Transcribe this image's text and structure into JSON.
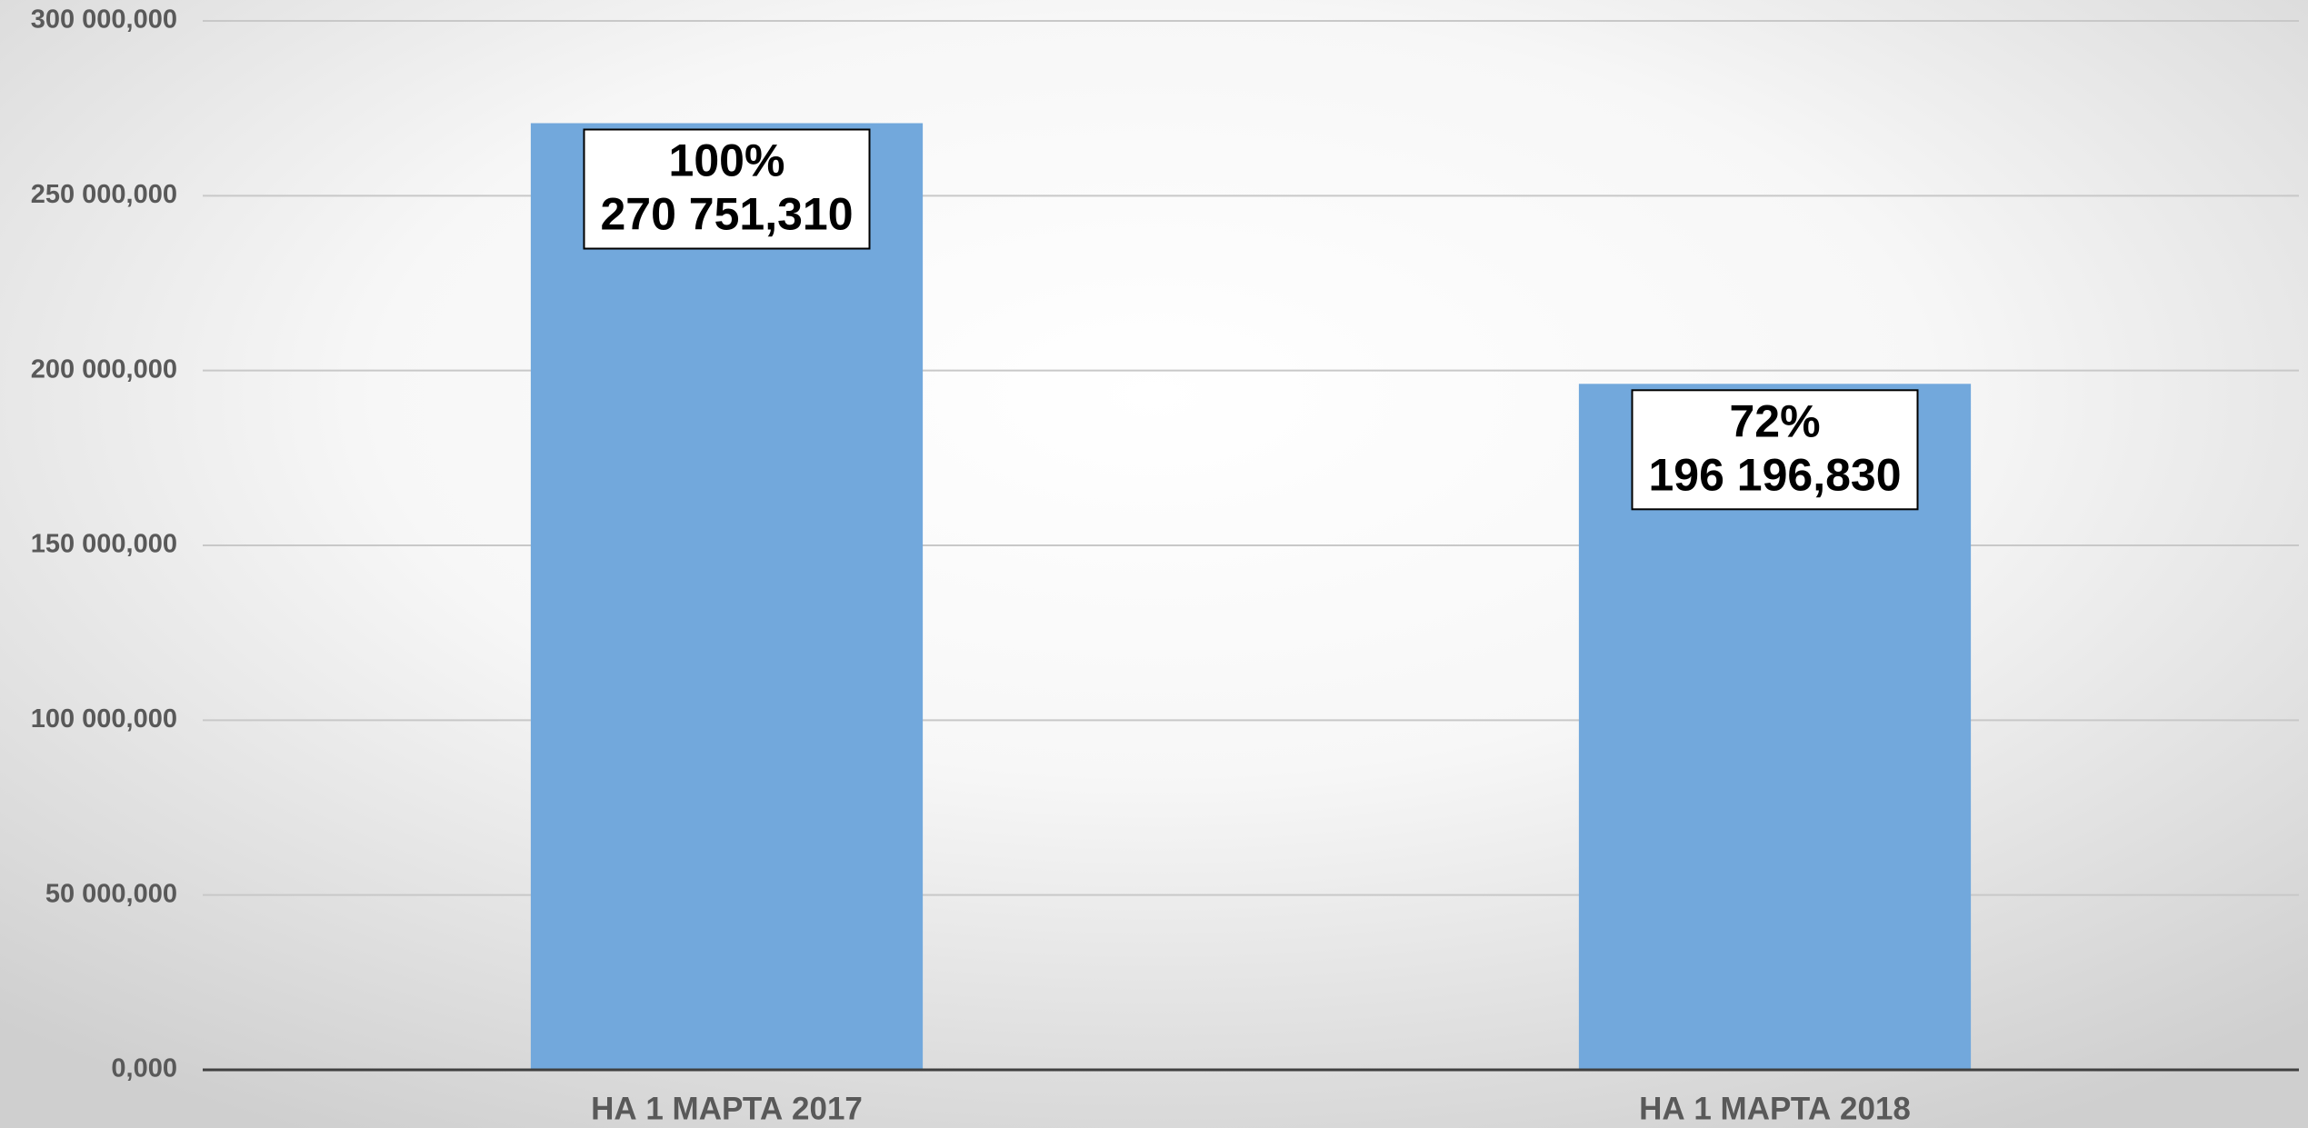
{
  "chart_data": {
    "type": "bar",
    "categories": [
      "НА 1 МАРТА 2017",
      "НА 1 МАРТА 2018"
    ],
    "values": [
      270751.31,
      196196.83
    ],
    "value_labels": [
      "270 751,310",
      "196 196,830"
    ],
    "share_labels": [
      "100%",
      "72%"
    ],
    "color": "#72a8dc",
    "ylim": [
      0,
      300000
    ],
    "yticks": [
      {
        "value": 0,
        "label": "0,000"
      },
      {
        "value": 50000,
        "label": "50 000,000"
      },
      {
        "value": 100000,
        "label": "100 000,000"
      },
      {
        "value": 150000,
        "label": "150 000,000"
      },
      {
        "value": 200000,
        "label": "200 000,000"
      },
      {
        "value": 250000,
        "label": "250 000,000"
      },
      {
        "value": 300000,
        "label": "300 000,000"
      }
    ],
    "grid": true
  }
}
